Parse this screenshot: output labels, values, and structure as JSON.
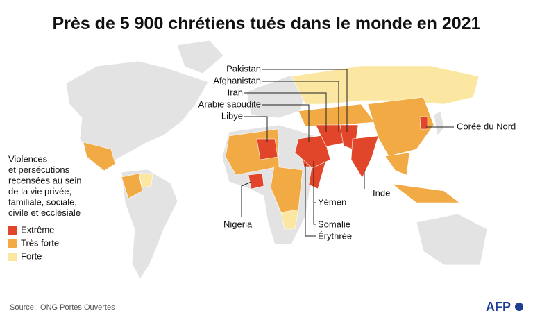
{
  "title": "Près de 5 900 chrétiens tués dans le monde en 2021",
  "legend": {
    "title_lines": [
      "Violences",
      "et persécutions",
      "recensées au sein",
      "de la vie privée,",
      "familiale, sociale,",
      "civile et ecclésiale"
    ],
    "items": [
      {
        "label": "Extrême",
        "color": "#e2462a"
      },
      {
        "label": "Très forte",
        "color": "#f2aa45"
      },
      {
        "label": "Forte",
        "color": "#fbe7a1"
      }
    ]
  },
  "labels": [
    "Pakistan",
    "Afghanistan",
    "Iran",
    "Arabie saoudite",
    "Libye",
    "Corée du Nord",
    "Inde",
    "Yémen",
    "Nigeria",
    "Somalie",
    "Érythrée"
  ],
  "source": "Source : ONG Portes Ouvertes",
  "logo": "AFP"
}
